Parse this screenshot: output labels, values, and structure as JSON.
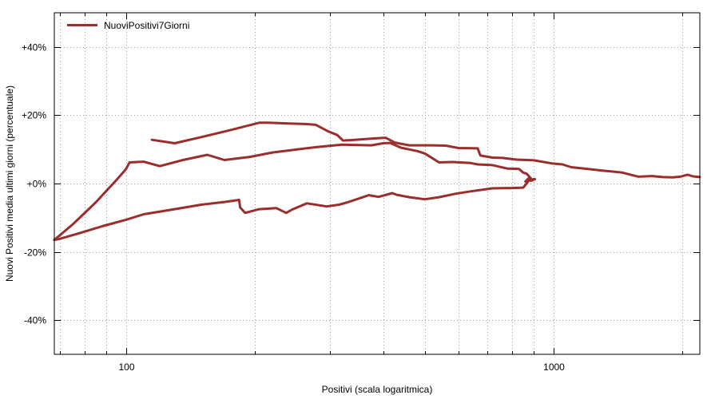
{
  "chart_data": {
    "type": "line",
    "xlabel": "Positivi (scala logaritmica)",
    "ylabel": "Nuovi Positivi media ultimi giorni (percentuale)",
    "x_scale": "log",
    "xlim": [
      68,
      2200
    ],
    "ylim": [
      -50,
      50
    ],
    "grid": true,
    "legend_position": "top-left",
    "x_ticks": [
      {
        "value": 100,
        "label": "100"
      },
      {
        "value": 1000,
        "label": "1000"
      }
    ],
    "x_minor_ticks": [
      70,
      80,
      90,
      200,
      300,
      400,
      500,
      600,
      700,
      800,
      900,
      2000
    ],
    "y_ticks": [
      {
        "value": 40,
        "label": "+40%"
      },
      {
        "value": 20,
        "label": "+20%"
      },
      {
        "value": 0,
        "label": "+0%"
      },
      {
        "value": -20,
        "label": "-20%"
      },
      {
        "value": -40,
        "label": "-40%"
      }
    ],
    "series": [
      {
        "name": "NuoviPositivi7Giorni",
        "color": "#9b2d2d",
        "points": [
          [
            115,
            12.8
          ],
          [
            130,
            11.8
          ],
          [
            150,
            13.6
          ],
          [
            175,
            15.6
          ],
          [
            205,
            17.8
          ],
          [
            215,
            17.8
          ],
          [
            240,
            17.6
          ],
          [
            265,
            17.4
          ],
          [
            278,
            17.2
          ],
          [
            298,
            15.2
          ],
          [
            312,
            14.2
          ],
          [
            322,
            12.6
          ],
          [
            335,
            12.7
          ],
          [
            380,
            13.2
          ],
          [
            405,
            13.4
          ],
          [
            425,
            12.0
          ],
          [
            460,
            11.2
          ],
          [
            520,
            11.2
          ],
          [
            560,
            11.1
          ],
          [
            600,
            10.4
          ],
          [
            665,
            10.3
          ],
          [
            675,
            8.2
          ],
          [
            720,
            7.6
          ],
          [
            760,
            7.5
          ],
          [
            820,
            7.0
          ],
          [
            900,
            6.8
          ],
          [
            990,
            5.9
          ],
          [
            1050,
            5.6
          ],
          [
            1100,
            4.8
          ],
          [
            1200,
            4.3
          ],
          [
            1300,
            3.8
          ],
          [
            1450,
            3.2
          ],
          [
            1580,
            2.0
          ],
          [
            1700,
            2.2
          ],
          [
            1800,
            1.9
          ],
          [
            1900,
            1.8
          ],
          [
            1980,
            2.0
          ],
          [
            2060,
            2.6
          ],
          [
            2120,
            2.1
          ],
          [
            2200,
            1.9
          ]
        ]
      },
      {
        "name": "",
        "color": "#9b2d2d",
        "points": [
          [
            905,
            1.3
          ],
          [
            885,
            0.8
          ],
          [
            885,
            1.6
          ],
          [
            860,
            -0.4
          ],
          [
            850,
            -1.2
          ],
          [
            800,
            -1.3
          ],
          [
            720,
            -1.4
          ],
          [
            640,
            -2.3
          ],
          [
            590,
            -3.0
          ],
          [
            540,
            -4.0
          ],
          [
            500,
            -4.6
          ],
          [
            460,
            -4.0
          ],
          [
            430,
            -3.3
          ],
          [
            420,
            -2.8
          ],
          [
            390,
            -3.9
          ],
          [
            370,
            -3.4
          ],
          [
            330,
            -5.5
          ],
          [
            315,
            -6.2
          ],
          [
            295,
            -6.7
          ],
          [
            265,
            -5.8
          ],
          [
            245,
            -7.6
          ],
          [
            237,
            -8.6
          ],
          [
            225,
            -7.2
          ],
          [
            205,
            -7.5
          ],
          [
            190,
            -8.6
          ],
          [
            185,
            -7.0
          ],
          [
            184,
            -4.8
          ],
          [
            170,
            -5.4
          ],
          [
            150,
            -6.2
          ],
          [
            130,
            -7.5
          ],
          [
            110,
            -9.0
          ],
          [
            100,
            -10.6
          ],
          [
            88,
            -12.5
          ],
          [
            78,
            -14.5
          ],
          [
            70,
            -16.2
          ],
          [
            68,
            -16.5
          ]
        ]
      },
      {
        "name": "",
        "color": "#9b2d2d",
        "points": [
          [
            68,
            -16.5
          ],
          [
            75,
            -12.0
          ],
          [
            85,
            -5.5
          ],
          [
            95,
            1.0
          ],
          [
            100,
            4.2
          ],
          [
            102,
            6.2
          ],
          [
            110,
            6.4
          ],
          [
            120,
            5.1
          ],
          [
            135,
            6.8
          ],
          [
            155,
            8.4
          ],
          [
            170,
            6.9
          ],
          [
            195,
            7.8
          ],
          [
            220,
            9.1
          ],
          [
            280,
            10.7
          ],
          [
            320,
            11.4
          ],
          [
            375,
            11.2
          ],
          [
            400,
            11.8
          ],
          [
            415,
            11.9
          ],
          [
            440,
            10.5
          ],
          [
            480,
            9.5
          ],
          [
            500,
            8.8
          ],
          [
            540,
            6.2
          ],
          [
            580,
            6.3
          ],
          [
            640,
            6.0
          ],
          [
            665,
            5.6
          ],
          [
            720,
            5.4
          ],
          [
            780,
            4.4
          ],
          [
            830,
            4.3
          ],
          [
            850,
            3.2
          ],
          [
            865,
            2.9
          ],
          [
            880,
            1.9
          ],
          [
            860,
            0.6
          ],
          [
            900,
            1.3
          ]
        ]
      }
    ]
  }
}
